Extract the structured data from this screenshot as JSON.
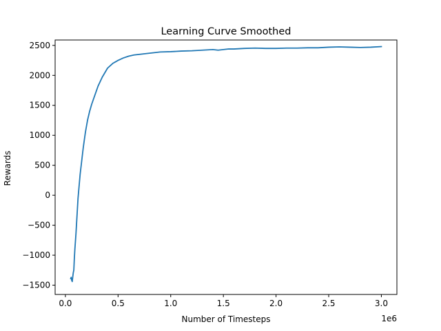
{
  "chart_data": {
    "type": "line",
    "title": "Learning Curve Smoothed",
    "xlabel": "Number of Timesteps",
    "ylabel": "Rewards",
    "x_offset_label": "1e6",
    "xlim": [
      -0.0975,
      3.1475
    ],
    "ylim": [
      -1655,
      2590
    ],
    "x_ticks": [
      0.0,
      0.5,
      1.0,
      1.5,
      2.0,
      2.5,
      3.0
    ],
    "x_tick_labels": [
      "0.0",
      "0.5",
      "1.0",
      "1.5",
      "2.0",
      "2.5",
      "3.0"
    ],
    "y_ticks": [
      -1500,
      -1000,
      -500,
      0,
      500,
      1000,
      1500,
      2000,
      2500
    ],
    "y_tick_labels": [
      "−1500",
      "−1000",
      "−500",
      "0",
      "500",
      "1000",
      "1500",
      "2000",
      "2500"
    ],
    "grid": false,
    "line_color": "#1f77b4",
    "series": [
      {
        "name": "",
        "x": [
          0.05,
          0.055,
          0.06,
          0.065,
          0.07,
          0.075,
          0.08,
          0.085,
          0.09,
          0.1,
          0.11,
          0.12,
          0.13,
          0.14,
          0.15,
          0.17,
          0.19,
          0.21,
          0.23,
          0.25,
          0.28,
          0.31,
          0.35,
          0.4,
          0.45,
          0.48,
          0.5,
          0.55,
          0.6,
          0.65,
          0.7,
          0.75,
          0.8,
          0.9,
          1.0,
          1.1,
          1.2,
          1.3,
          1.4,
          1.45,
          1.5,
          1.55,
          1.6,
          1.7,
          1.8,
          1.9,
          2.0,
          2.1,
          2.2,
          2.3,
          2.4,
          2.5,
          2.6,
          2.7,
          2.8,
          2.9,
          3.0
        ],
        "y": [
          -1390,
          -1370,
          -1420,
          -1440,
          -1360,
          -1290,
          -1250,
          -1050,
          -900,
          -650,
          -350,
          -50,
          150,
          350,
          500,
          800,
          1050,
          1250,
          1400,
          1520,
          1670,
          1820,
          1970,
          2120,
          2200,
          2230,
          2250,
          2290,
          2320,
          2340,
          2350,
          2360,
          2370,
          2390,
          2395,
          2405,
          2410,
          2420,
          2430,
          2420,
          2430,
          2440,
          2440,
          2450,
          2455,
          2450,
          2450,
          2455,
          2455,
          2460,
          2460,
          2470,
          2475,
          2470,
          2465,
          2470,
          2480
        ]
      }
    ]
  }
}
